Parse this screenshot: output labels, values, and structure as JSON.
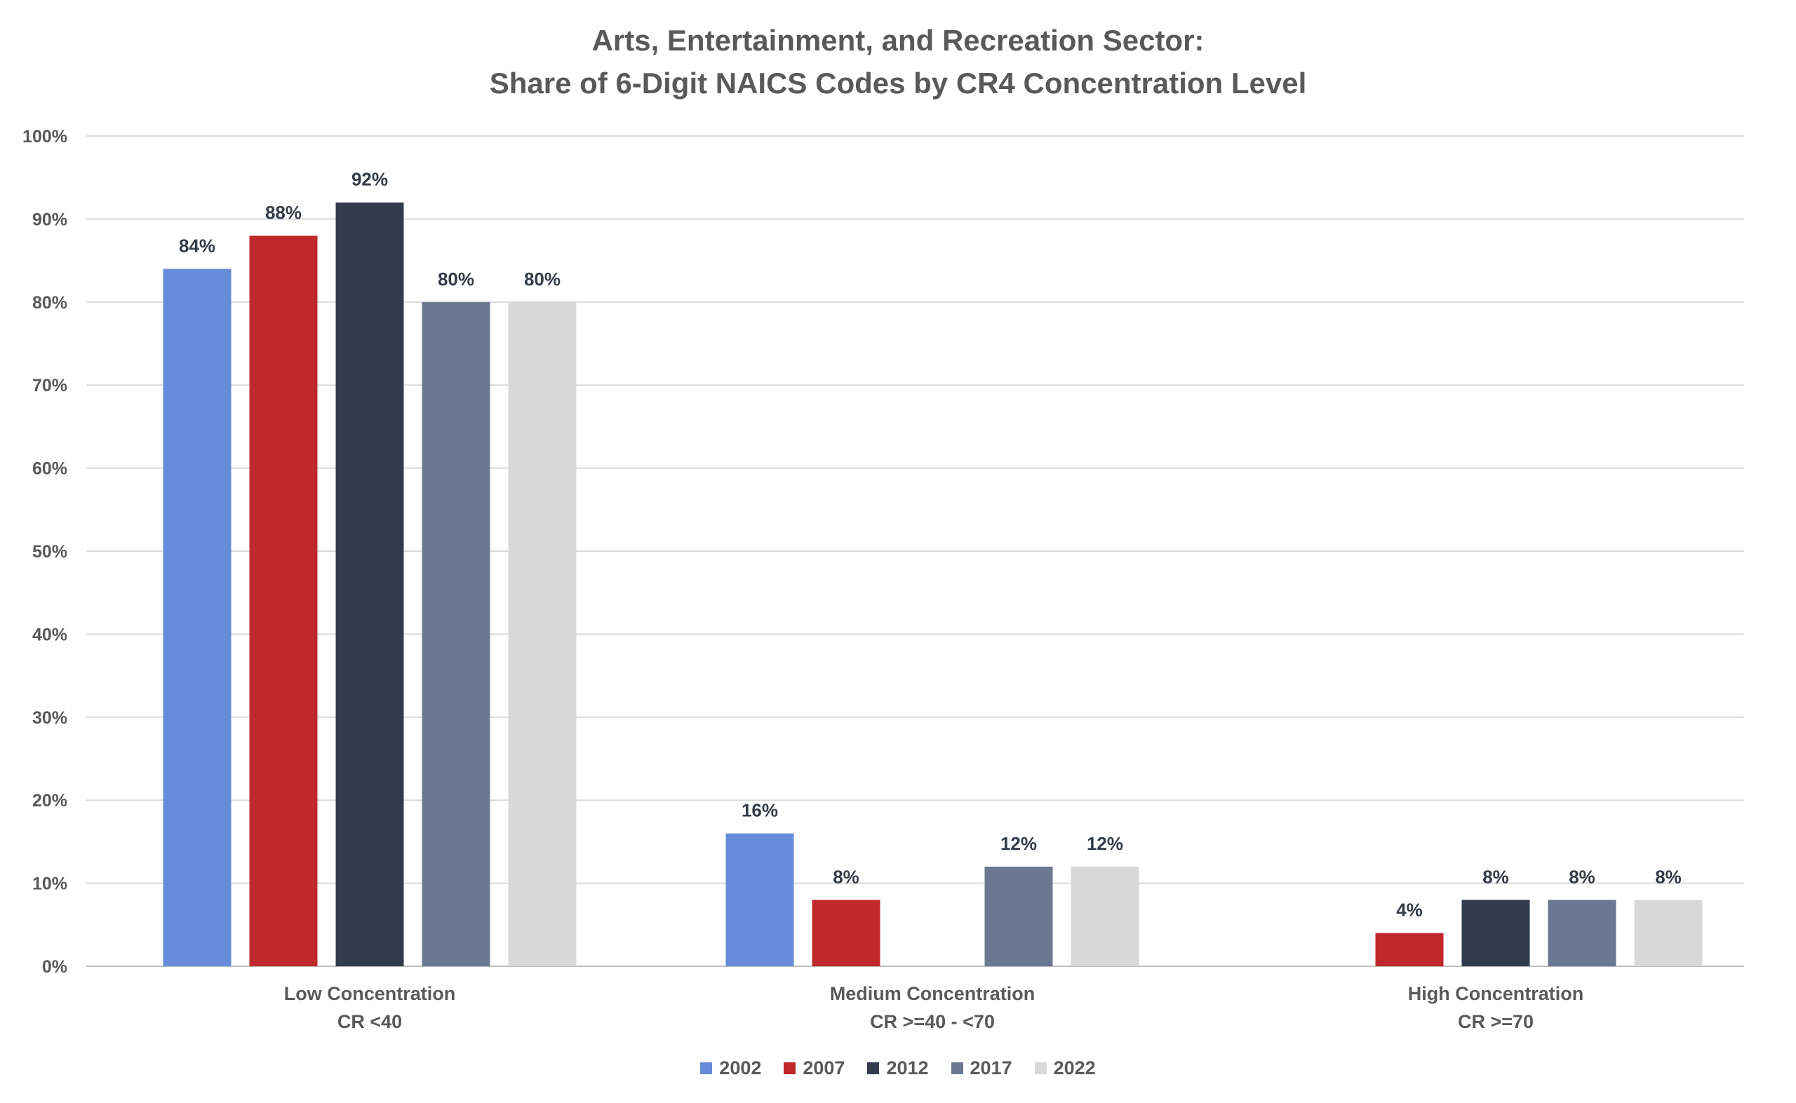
{
  "chart_data": {
    "type": "bar",
    "title": [
      "Arts, Entertainment, and Recreation Sector:",
      "Share of 6-Digit NAICS Codes by CR4 Concentration Level"
    ],
    "categories": [
      [
        "Low Concentration",
        "CR <40"
      ],
      [
        "Medium Concentration",
        "CR >=40 - <70"
      ],
      [
        "High Concentration",
        "CR >=70"
      ]
    ],
    "series": [
      {
        "name": "2002",
        "color": "#668cd9",
        "values": [
          84,
          16,
          null
        ]
      },
      {
        "name": "2007",
        "color": "#c0292b",
        "values": [
          88,
          8,
          4
        ]
      },
      {
        "name": "2012",
        "color": "#323a4d",
        "values": [
          92,
          null,
          8
        ]
      },
      {
        "name": "2017",
        "color": "#6b7891",
        "values": [
          80,
          12,
          8
        ]
      },
      {
        "name": "2022",
        "color": "#d9d8d9",
        "values": [
          80,
          12,
          8
        ]
      }
    ],
    "ylim": [
      0,
      100
    ],
    "yticks": [
      "0%",
      "10%",
      "20%",
      "30%",
      "40%",
      "50%",
      "60%",
      "70%",
      "80%",
      "90%",
      "100%"
    ],
    "grid": true,
    "legend": "bottom",
    "xlabel": "",
    "ylabel": ""
  }
}
